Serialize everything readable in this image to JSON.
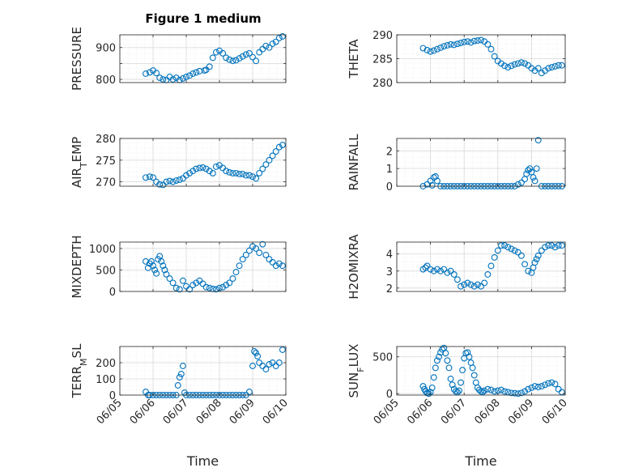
{
  "figure": {
    "title": "Figure 1 medium"
  },
  "colors": {
    "marker": "#0072bd",
    "axis": "#262626",
    "grid": "#d9d9d9",
    "minor_grid": "#ebebeb"
  },
  "chart_data": [
    {
      "type": "scatter",
      "ylabel": "PRESSURE",
      "ylim": [
        790,
        940
      ],
      "yticks": [
        800,
        850,
        900
      ],
      "ytick_labels": [
        "800",
        "",
        "900"
      ],
      "xlim": [
        0,
        5
      ],
      "xticks": [
        0,
        1,
        2,
        3,
        4,
        5
      ],
      "xtick_labels": [],
      "grid": true,
      "series": [
        {
          "x": [
            0.78,
            0.9,
            1.0,
            1.1,
            1.2,
            1.3,
            1.4,
            1.5,
            1.6,
            1.7,
            1.8,
            1.9,
            2.0,
            2.1,
            2.2,
            2.3,
            2.4,
            2.55,
            2.6,
            2.7,
            2.8,
            2.9,
            3.0,
            3.1,
            3.2,
            3.3,
            3.4,
            3.5,
            3.6,
            3.7,
            3.8,
            3.9,
            4.0,
            4.1,
            4.2,
            4.3,
            4.4,
            4.5,
            4.6,
            4.7,
            4.8,
            4.9
          ],
          "y": [
            818,
            822,
            828,
            820,
            805,
            800,
            798,
            808,
            800,
            805,
            798,
            803,
            808,
            812,
            818,
            822,
            826,
            828,
            830,
            840,
            868,
            885,
            890,
            882,
            868,
            862,
            858,
            860,
            866,
            872,
            878,
            882,
            870,
            858,
            885,
            895,
            905,
            900,
            912,
            918,
            930,
            935
          ]
        }
      ]
    },
    {
      "type": "scatter",
      "ylabel": "THETA",
      "ylim": [
        280,
        290
      ],
      "yticks": [
        280,
        285,
        290
      ],
      "ytick_labels": [
        "280",
        "285",
        "290"
      ],
      "xlim": [
        0,
        5
      ],
      "xticks": [
        0,
        1,
        2,
        3,
        4,
        5
      ],
      "xtick_labels": [],
      "grid": true,
      "series": [
        {
          "x": [
            0.78,
            0.9,
            1.0,
            1.1,
            1.2,
            1.3,
            1.4,
            1.5,
            1.6,
            1.7,
            1.8,
            1.9,
            2.0,
            2.1,
            2.2,
            2.3,
            2.4,
            2.5,
            2.6,
            2.7,
            2.8,
            2.9,
            3.0,
            3.1,
            3.2,
            3.3,
            3.4,
            3.5,
            3.6,
            3.7,
            3.8,
            3.9,
            4.0,
            4.1,
            4.2,
            4.3,
            4.4,
            4.5,
            4.6,
            4.7,
            4.8,
            4.9
          ],
          "y": [
            287.2,
            286.8,
            286.5,
            286.7,
            287.0,
            287.3,
            287.6,
            287.8,
            288.0,
            287.9,
            288.1,
            288.3,
            288.5,
            288.6,
            288.4,
            288.7,
            288.8,
            288.9,
            288.6,
            288.0,
            287.0,
            285.5,
            284.5,
            284.0,
            283.5,
            283.2,
            283.5,
            283.8,
            284.0,
            284.2,
            284.0,
            283.6,
            283.0,
            282.5,
            283.0,
            282.0,
            282.5,
            283.0,
            283.2,
            283.4,
            283.6,
            283.6
          ]
        }
      ]
    },
    {
      "type": "scatter",
      "ylabel": "AIR_TEMP",
      "ylim": [
        269,
        280
      ],
      "yticks": [
        270,
        275,
        280
      ],
      "ytick_labels": [
        "270",
        "275",
        "280"
      ],
      "xlim": [
        0,
        5
      ],
      "xticks": [
        0,
        1,
        2,
        3,
        4,
        5
      ],
      "xtick_labels": [],
      "grid": true,
      "series": [
        {
          "x": [
            0.78,
            0.9,
            1.0,
            1.1,
            1.2,
            1.3,
            1.4,
            1.5,
            1.6,
            1.7,
            1.8,
            1.9,
            2.0,
            2.1,
            2.2,
            2.3,
            2.4,
            2.5,
            2.6,
            2.7,
            2.8,
            2.9,
            3.0,
            3.1,
            3.2,
            3.3,
            3.4,
            3.5,
            3.6,
            3.7,
            3.8,
            3.9,
            4.0,
            4.1,
            4.2,
            4.3,
            4.4,
            4.5,
            4.6,
            4.7,
            4.8,
            4.9
          ],
          "y": [
            271.0,
            271.2,
            271.0,
            270.0,
            269.4,
            269.3,
            270.0,
            270.2,
            270.0,
            270.3,
            270.5,
            270.8,
            271.5,
            272.0,
            272.5,
            273.0,
            273.2,
            273.3,
            273.0,
            272.5,
            272.0,
            273.5,
            273.8,
            273.2,
            272.5,
            272.2,
            272.0,
            272.0,
            271.8,
            271.8,
            271.5,
            271.5,
            271.2,
            270.8,
            272.0,
            273.0,
            274.0,
            275.0,
            276.0,
            277.0,
            278.0,
            278.5
          ]
        }
      ]
    },
    {
      "type": "scatter",
      "ylabel": "RAINFALL",
      "ylim": [
        0,
        2.7
      ],
      "yticks": [
        0,
        1,
        2
      ],
      "ytick_labels": [
        "0",
        "1",
        "2"
      ],
      "xlim": [
        0,
        5
      ],
      "xticks": [
        0,
        1,
        2,
        3,
        4,
        5
      ],
      "xtick_labels": [],
      "grid": true,
      "series": [
        {
          "x": [
            0.78,
            0.9,
            1.0,
            1.05,
            1.1,
            1.15,
            1.2,
            1.3,
            1.4,
            1.5,
            1.6,
            1.7,
            1.8,
            1.9,
            2.0,
            2.1,
            2.2,
            2.3,
            2.4,
            2.5,
            2.6,
            2.7,
            2.8,
            2.9,
            3.0,
            3.1,
            3.2,
            3.3,
            3.4,
            3.5,
            3.6,
            3.7,
            3.8,
            3.85,
            3.9,
            3.95,
            4.0,
            4.05,
            4.1,
            4.15,
            4.2,
            4.3,
            4.4,
            4.5,
            4.6,
            4.7,
            4.8,
            4.9
          ],
          "y": [
            0,
            0.1,
            0.3,
            0.05,
            0.5,
            0.55,
            0.3,
            0,
            0,
            0,
            0,
            0,
            0,
            0,
            0,
            0,
            0,
            0,
            0,
            0,
            0,
            0,
            0,
            0,
            0,
            0,
            0,
            0,
            0,
            0,
            0.1,
            0.2,
            0.4,
            0.7,
            0.9,
            1.0,
            0.8,
            0.5,
            0.3,
            1.0,
            2.6,
            0,
            0,
            0,
            0,
            0,
            0,
            0
          ]
        }
      ]
    },
    {
      "type": "scatter",
      "ylabel": "MIXDEPTH",
      "ylim": [
        0,
        1150
      ],
      "yticks": [
        0,
        500,
        1000
      ],
      "ytick_labels": [
        "0",
        "500",
        "1000"
      ],
      "xlim": [
        0,
        5
      ],
      "xticks": [
        0,
        1,
        2,
        3,
        4,
        5
      ],
      "xtick_labels": [],
      "grid": true,
      "series": [
        {
          "x": [
            0.78,
            0.85,
            0.9,
            0.95,
            1.0,
            1.05,
            1.1,
            1.15,
            1.2,
            1.25,
            1.3,
            1.35,
            1.4,
            1.5,
            1.6,
            1.7,
            1.8,
            1.9,
            2.0,
            2.1,
            2.2,
            2.3,
            2.4,
            2.5,
            2.6,
            2.7,
            2.8,
            2.9,
            3.0,
            3.1,
            3.2,
            3.3,
            3.4,
            3.5,
            3.6,
            3.7,
            3.8,
            3.9,
            4.0,
            4.1,
            4.2,
            4.3,
            4.4,
            4.5,
            4.6,
            4.7,
            4.8,
            4.9
          ],
          "y": [
            700,
            550,
            650,
            700,
            600,
            500,
            420,
            750,
            820,
            700,
            600,
            500,
            400,
            300,
            200,
            80,
            50,
            250,
            120,
            50,
            150,
            200,
            250,
            180,
            100,
            80,
            60,
            50,
            80,
            100,
            150,
            200,
            300,
            450,
            600,
            750,
            850,
            950,
            1050,
            1000,
            900,
            1100,
            850,
            750,
            680,
            600,
            650,
            600
          ]
        }
      ]
    },
    {
      "type": "scatter",
      "ylabel": "H2OMIXRA",
      "ylim": [
        1.8,
        4.7
      ],
      "yticks": [
        2,
        3,
        4
      ],
      "ytick_labels": [
        "2",
        "3",
        "4"
      ],
      "xlim": [
        0,
        5
      ],
      "xticks": [
        0,
        1,
        2,
        3,
        4,
        5
      ],
      "xtick_labels": [],
      "grid": true,
      "series": [
        {
          "x": [
            0.78,
            0.85,
            0.9,
            1.0,
            1.1,
            1.2,
            1.3,
            1.4,
            1.5,
            1.6,
            1.7,
            1.8,
            1.9,
            2.0,
            2.1,
            2.2,
            2.3,
            2.4,
            2.5,
            2.6,
            2.7,
            2.8,
            2.9,
            3.0,
            3.1,
            3.2,
            3.3,
            3.4,
            3.5,
            3.6,
            3.7,
            3.8,
            3.9,
            4.0,
            4.05,
            4.1,
            4.15,
            4.2,
            4.3,
            4.4,
            4.5,
            4.6,
            4.7,
            4.8,
            4.9
          ],
          "y": [
            3.1,
            3.2,
            3.3,
            3.1,
            3.0,
            3.1,
            3.0,
            3.1,
            2.9,
            3.0,
            2.8,
            2.5,
            2.1,
            2.2,
            2.3,
            2.2,
            2.1,
            2.2,
            2.1,
            2.3,
            2.8,
            3.3,
            3.8,
            4.2,
            4.5,
            4.5,
            4.4,
            4.3,
            4.2,
            4.1,
            3.9,
            3.4,
            3.0,
            2.9,
            3.2,
            3.5,
            3.7,
            3.9,
            4.2,
            4.4,
            4.5,
            4.5,
            4.4,
            4.5,
            4.5
          ]
        }
      ]
    },
    {
      "type": "scatter",
      "ylabel": "TERR_MSL",
      "ylim": [
        0,
        300
      ],
      "yticks": [
        0,
        100,
        200
      ],
      "ytick_labels": [
        "0",
        "100",
        "200"
      ],
      "xlim": [
        0,
        5
      ],
      "xticks": [
        0,
        1,
        2,
        3,
        4,
        5
      ],
      "xtick_labels": [
        "06/05",
        "06/06",
        "06/07",
        "06/08",
        "06/09",
        "06/10"
      ],
      "xlabel": "Time",
      "grid": true,
      "series": [
        {
          "x": [
            0.78,
            0.85,
            0.9,
            1.0,
            1.1,
            1.2,
            1.3,
            1.4,
            1.5,
            1.6,
            1.7,
            1.75,
            1.8,
            1.85,
            1.9,
            1.95,
            2.0,
            2.1,
            2.2,
            2.3,
            2.4,
            2.5,
            2.6,
            2.7,
            2.8,
            2.9,
            3.0,
            3.1,
            3.2,
            3.3,
            3.4,
            3.5,
            3.6,
            3.7,
            3.8,
            3.9,
            4.0,
            4.05,
            4.1,
            4.15,
            4.2,
            4.3,
            4.4,
            4.5,
            4.6,
            4.7,
            4.8,
            4.9
          ],
          "y": [
            20,
            0,
            0,
            0,
            0,
            0,
            0,
            0,
            0,
            0,
            0,
            60,
            110,
            130,
            180,
            15,
            0,
            0,
            0,
            0,
            0,
            0,
            0,
            0,
            0,
            0,
            0,
            0,
            0,
            0,
            0,
            0,
            0,
            0,
            0,
            20,
            180,
            270,
            260,
            240,
            200,
            180,
            160,
            190,
            200,
            180,
            200,
            280
          ]
        }
      ]
    },
    {
      "type": "scatter",
      "ylabel": "SUN_FLUX",
      "ylim": [
        -20,
        640
      ],
      "yticks": [
        0,
        500
      ],
      "ytick_labels": [
        "0",
        "500"
      ],
      "xlim": [
        0,
        5
      ],
      "xticks": [
        0,
        1,
        2,
        3,
        4,
        5
      ],
      "xtick_labels": [
        "06/05",
        "06/06",
        "06/07",
        "06/08",
        "06/09",
        "06/10"
      ],
      "xlabel": "Time",
      "grid": true,
      "series": [
        {
          "x": [
            0.78,
            0.82,
            0.86,
            0.9,
            0.95,
            1.0,
            1.05,
            1.1,
            1.15,
            1.2,
            1.25,
            1.3,
            1.35,
            1.4,
            1.45,
            1.5,
            1.55,
            1.6,
            1.65,
            1.7,
            1.75,
            1.8,
            1.85,
            1.9,
            1.95,
            2.0,
            2.05,
            2.1,
            2.15,
            2.2,
            2.25,
            2.3,
            2.35,
            2.4,
            2.45,
            2.5,
            2.55,
            2.6,
            2.7,
            2.8,
            2.9,
            3.0,
            3.1,
            3.2,
            3.3,
            3.4,
            3.5,
            3.6,
            3.7,
            3.8,
            3.9,
            4.0,
            4.1,
            4.2,
            4.3,
            4.4,
            4.5,
            4.6,
            4.7,
            4.8,
            4.9
          ],
          "y": [
            100,
            60,
            30,
            10,
            0,
            20,
            80,
            220,
            350,
            450,
            500,
            560,
            600,
            620,
            550,
            450,
            350,
            200,
            120,
            60,
            30,
            20,
            40,
            150,
            320,
            480,
            550,
            560,
            500,
            420,
            350,
            250,
            150,
            80,
            50,
            30,
            20,
            40,
            60,
            50,
            30,
            40,
            50,
            30,
            20,
            10,
            5,
            0,
            10,
            30,
            60,
            80,
            100,
            90,
            100,
            120,
            140,
            150,
            130,
            60,
            20
          ]
        }
      ]
    }
  ]
}
